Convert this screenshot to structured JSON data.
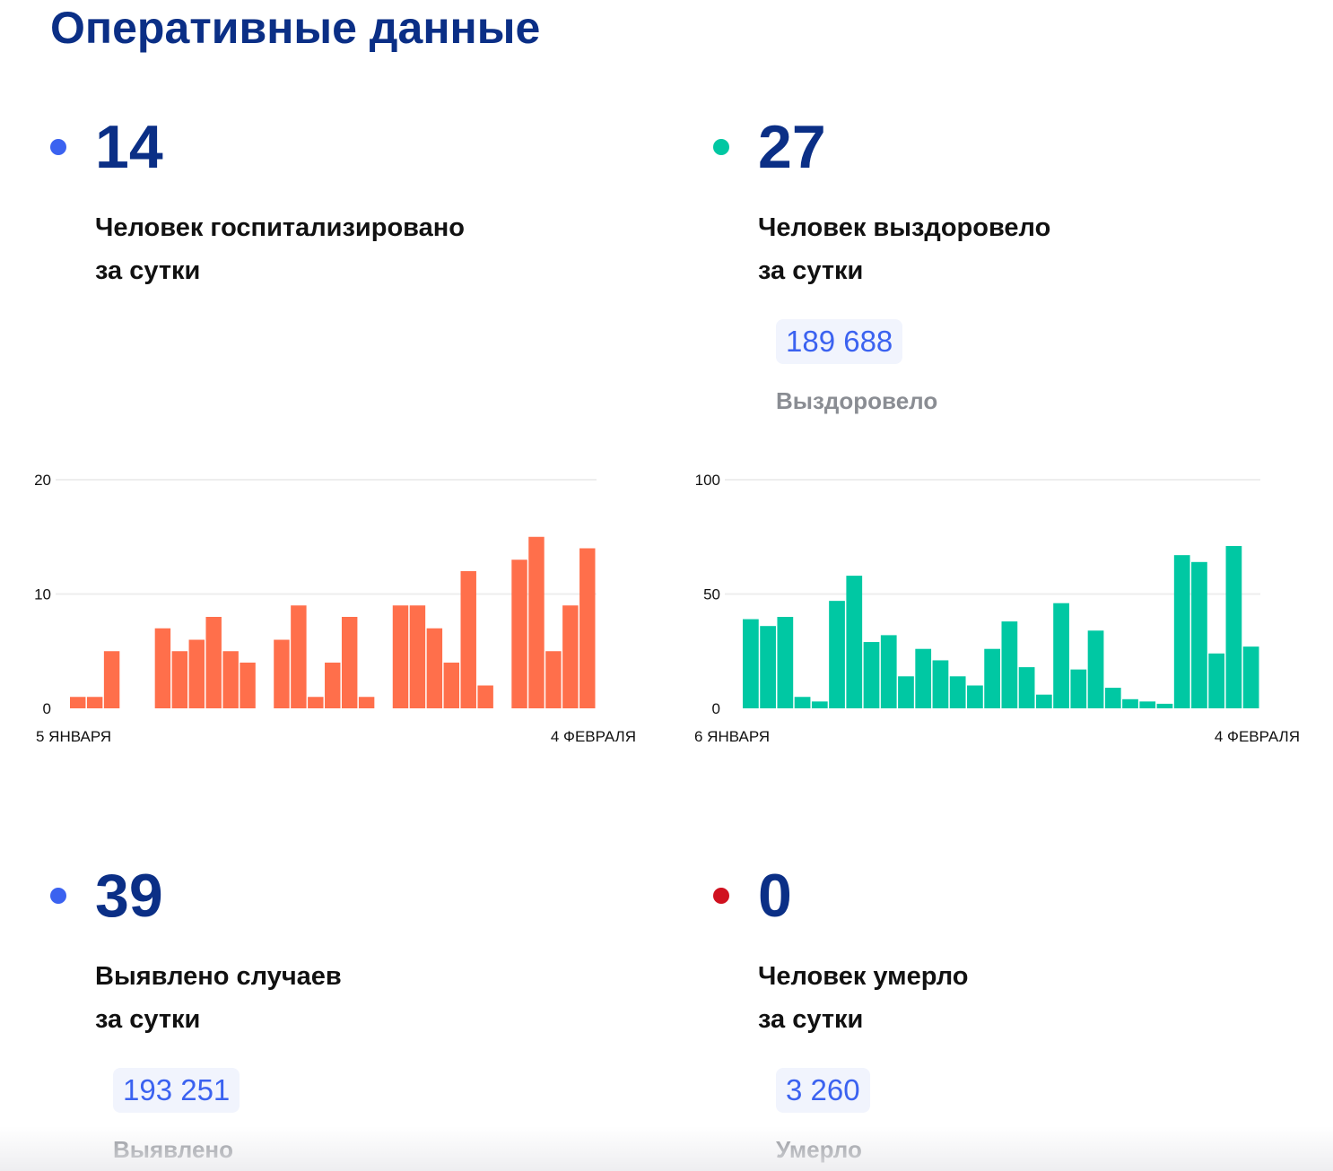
{
  "title": "Оперативные данные",
  "colors": {
    "blue_dot": "#3b62f0",
    "green_dot": "#00c7a2",
    "red_dot": "#d0111f",
    "orange_bar": "#ff6f4b",
    "green_bar": "#00c8a3"
  },
  "cards": [
    {
      "value": "14",
      "label1": "Человек госпитализировано",
      "label2": "за сутки"
    },
    {
      "value": "27",
      "label1": "Человек выздоровело",
      "label2": "за сутки",
      "total": "189 688",
      "total_label": "Выздоровело"
    },
    {
      "value": "39",
      "label1": "Выявлено случаев",
      "label2": "за сутки",
      "total": "193 251",
      "total_label": "Выявлено"
    },
    {
      "value": "0",
      "label1": "Человек умерло",
      "label2": "за сутки",
      "total": "3 260",
      "total_label": "Умерло"
    }
  ],
  "chart_data": [
    {
      "type": "bar",
      "title": "Госпитализировано",
      "ylim": [
        0,
        20
      ],
      "yticks": [
        "0",
        "10",
        "20"
      ],
      "x_start": "5 ЯНВАРЯ",
      "x_end": "4 ФЕВРАЛЯ",
      "values": [
        1,
        1,
        5,
        0,
        0,
        7,
        5,
        6,
        8,
        5,
        4,
        0,
        6,
        9,
        1,
        4,
        8,
        1,
        0,
        9,
        9,
        7,
        4,
        12,
        2,
        0,
        13,
        15,
        5,
        9,
        14
      ]
    },
    {
      "type": "bar",
      "title": "Выздоровело",
      "ylim": [
        0,
        100
      ],
      "yticks": [
        "0",
        "50",
        "100"
      ],
      "x_start": "6 ЯНВАРЯ",
      "x_end": "4 ФЕВРАЛЯ",
      "values": [
        39,
        36,
        40,
        5,
        3,
        47,
        58,
        29,
        32,
        14,
        26,
        21,
        14,
        10,
        26,
        38,
        18,
        6,
        46,
        17,
        34,
        9,
        4,
        3,
        2,
        67,
        64,
        24,
        71,
        27
      ]
    }
  ]
}
